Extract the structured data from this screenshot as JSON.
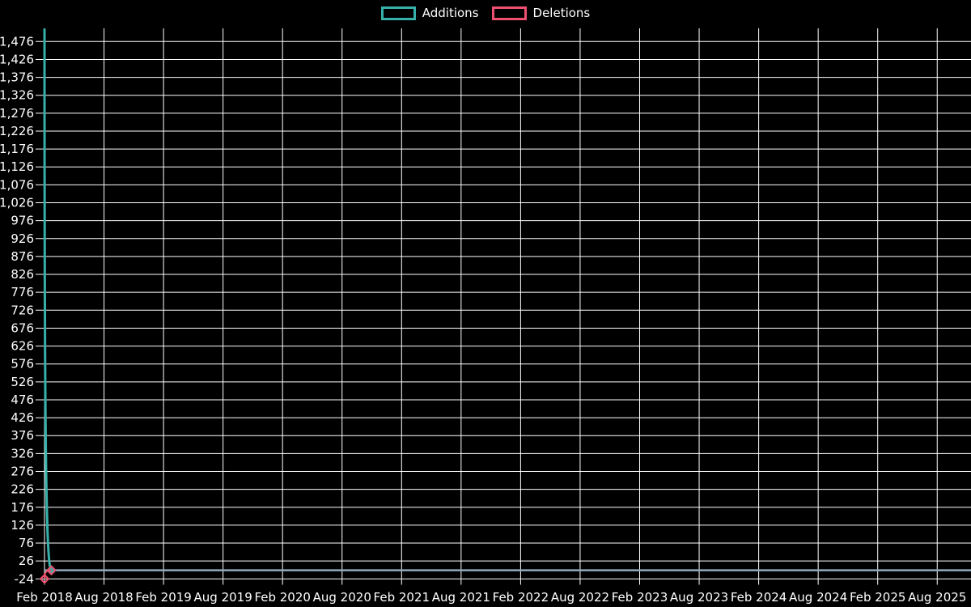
{
  "page": {
    "background_color": "#000000",
    "text_color": "#ffffff"
  },
  "legend": {
    "position": "top-center",
    "items": [
      {
        "label": "Additions",
        "color": "#36b0a9"
      },
      {
        "label": "Deletions",
        "color": "#ef506f"
      }
    ]
  },
  "chart_data": {
    "type": "line",
    "description": "Weekly code additions and deletions; a single additions spike and small deletions dip at the first weeks of Feb 2018, flat at zero afterwards",
    "x_tick_labels": [
      "Feb 2018",
      "Aug 2018",
      "Feb 2019",
      "Aug 2019",
      "Feb 2020",
      "Aug 2020",
      "Feb 2021",
      "Aug 2021",
      "Feb 2022",
      "Aug 2022",
      "Feb 2023",
      "Aug 2023",
      "Feb 2024",
      "Aug 2024",
      "Feb 2025",
      "Aug 2025"
    ],
    "y_tick_labels": [
      "1,476",
      "1,426",
      "1,376",
      "1,326",
      "1,276",
      "1,226",
      "1,176",
      "1,126",
      "1,076",
      "1,026",
      "976",
      "926",
      "876",
      "826",
      "776",
      "726",
      "676",
      "626",
      "576",
      "526",
      "476",
      "426",
      "376",
      "326",
      "276",
      "226",
      "176",
      "126",
      "76",
      "26",
      "-24"
    ],
    "y_axis": {
      "min": -24,
      "max": 1512,
      "tick_step": 50
    },
    "x_axis": {
      "tick_interval_months": 6,
      "start": "Feb 2018",
      "end": "Aug 2025"
    },
    "grid": {
      "show": true,
      "color": "#ffffff"
    },
    "zero_line_color": "#93a9be",
    "legend_position": "top",
    "series": [
      {
        "name": "Additions",
        "color": "#36b0a9",
        "points": [
          {
            "week": 0,
            "value": 1512,
            "estimated": true,
            "marker": false
          },
          {
            "week": 3,
            "value": 0,
            "marker": true
          }
        ]
      },
      {
        "name": "Deletions",
        "color": "#ef506f",
        "points": [
          {
            "week": 0,
            "value": -24,
            "marker": true
          },
          {
            "week": 3,
            "value": 0,
            "marker": true
          }
        ]
      }
    ]
  }
}
